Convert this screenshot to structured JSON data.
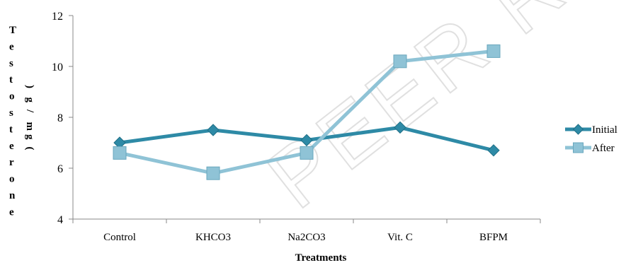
{
  "watermark": "PEER REVIEW",
  "chart_data": {
    "type": "line",
    "categories": [
      "Control",
      "KHCO3",
      "Na2CO3",
      "Vit. C",
      "BFPM"
    ],
    "series": [
      {
        "name": "Initial",
        "values": [
          7.0,
          7.5,
          7.1,
          7.6,
          6.7
        ],
        "color": "#2e8aa6",
        "marker": "diamond"
      },
      {
        "name": "After",
        "values": [
          6.6,
          5.8,
          6.6,
          10.2,
          10.6
        ],
        "color": "#8fc3d6",
        "marker": "square"
      }
    ],
    "xlabel": "Treatments",
    "ylabel_left_chars": [
      "T",
      "e",
      "s",
      "t",
      "o",
      "s",
      "t",
      "e",
      "r",
      "o",
      "n",
      "e"
    ],
    "ylabel_right_chars": [
      ")",
      "g",
      "/",
      "m",
      "g",
      "("
    ],
    "ylim": [
      4,
      12
    ],
    "yticks": [
      4,
      6,
      8,
      10,
      12
    ],
    "legend_position": "right",
    "grid": false
  }
}
